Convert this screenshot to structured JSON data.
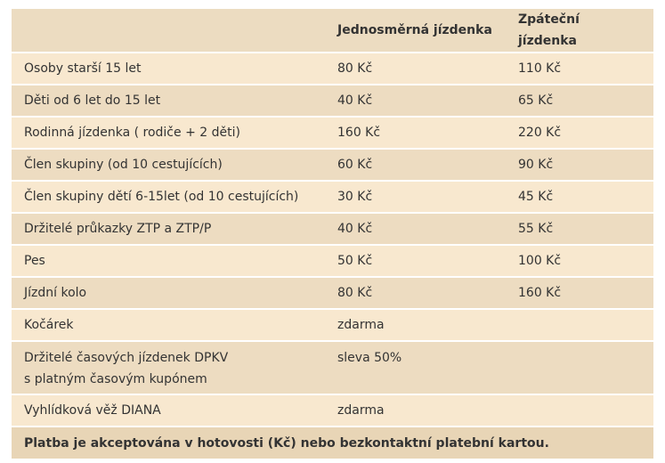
{
  "table": {
    "header": [
      "Jednosměrná jízdenka",
      "Zpáteční jízdenka"
    ],
    "rows": [
      [
        [
          "Osoby starší 15 let"
        ],
        "80 Kč",
        "110 Kč"
      ],
      [
        [
          "Děti od 6 let do 15 let"
        ],
        "40 Kč",
        "65 Kč"
      ],
      [
        [
          "Rodinná jízdenka ( rodiče + 2 děti)"
        ],
        "160 Kč",
        "220 Kč"
      ],
      [
        [
          "Člen skupiny (od 10 cestujících)"
        ],
        "60 Kč",
        "90 Kč"
      ],
      [
        [
          "Člen skupiny dětí 6-15let (od 10 cestujících)"
        ],
        "30 Kč",
        "45 Kč"
      ],
      [
        [
          "Držitelé průkazky ZTP a ZTP/P"
        ],
        "40 Kč",
        "55 Kč"
      ],
      [
        [
          "Pes"
        ],
        "50 Kč",
        "100 Kč"
      ],
      [
        [
          "Jízdní kolo"
        ],
        "80 Kč",
        "160 Kč"
      ],
      [
        [
          "Kočárek"
        ],
        "zdarma"
      ],
      [
        [
          "Držitelé časových jízdenek DPKV",
          "s platným časovým kupónem"
        ],
        "sleva 50%"
      ],
      [
        [
          "Vyhlídková věž DIANA"
        ],
        "zdarma"
      ]
    ],
    "footer": "Platba je akceptována v hotovosti (Kč) nebo bezkontaktní platební kartou."
  }
}
